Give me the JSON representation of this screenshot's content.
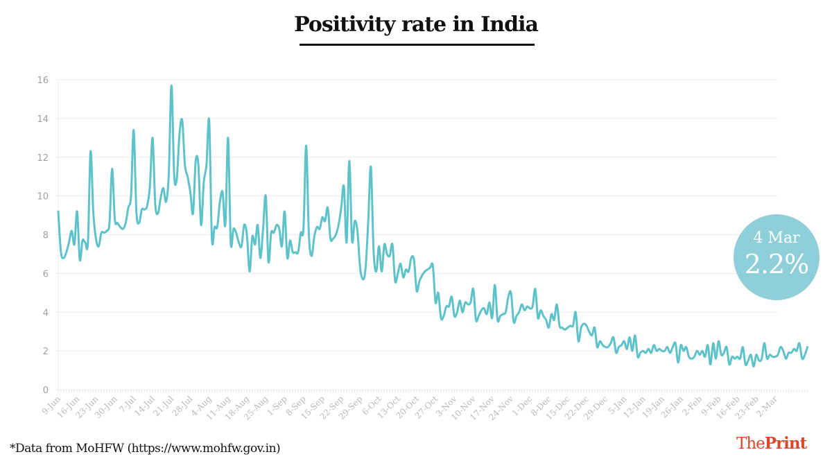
{
  "header": {
    "title": "Positivity rate in India"
  },
  "badge": {
    "date": "4 Mar",
    "value": "2.2%"
  },
  "footer": {
    "source_note": "*Data from MoHFW (https://www.mohfw.gov.in)"
  },
  "brand": {
    "logo_part1": "The",
    "logo_part2": "Print",
    "color": "#d54a2b"
  },
  "colors": {
    "line": "#5ec2cb",
    "badge": "#8fcfd9"
  },
  "chart_data": {
    "type": "line",
    "title": "Positivity rate in India",
    "xlabel": "",
    "ylabel": "",
    "ylim": [
      0,
      16
    ],
    "yticks": [
      0,
      2,
      4,
      6,
      8,
      10,
      12,
      14,
      16
    ],
    "grid": true,
    "legend": "none",
    "x_start": "9-Jun",
    "x_end": "4-Mar",
    "x_step_days": 1,
    "xtick_labels": [
      "9-Jun",
      "16-Jun",
      "23-Jun",
      "30-Jun",
      "7-Jul",
      "14-Jul",
      "21-Jul",
      "28-Jul",
      "4-Aug",
      "11-Aug",
      "18-Aug",
      "25-Aug",
      "1-Sep",
      "8-Sep",
      "15-Sep",
      "22-Sep",
      "29-Sep",
      "6-Oct",
      "13-Oct",
      "20-Oct",
      "27-Oct",
      "3-Nov",
      "10-Nov",
      "17-Nov",
      "24-Nov",
      "1-Dec",
      "8-Dec",
      "15-Dec",
      "22-Dec",
      "29-Dec",
      "5-Jan",
      "12-Jan",
      "19-Jan",
      "26-Jan",
      "2-Feb",
      "9-Feb",
      "16-Feb",
      "23-Feb",
      "2-Mar"
    ],
    "xtick_interval_days": 7,
    "series": [
      {
        "name": "Positivity rate (%)",
        "values": [
          9.2,
          7.1,
          6.8,
          7.1,
          7.6,
          8.2,
          7.5,
          9.2,
          6.7,
          7.7,
          7.6,
          7.6,
          12.3,
          9.2,
          7.8,
          7.4,
          8.1,
          8.1,
          8.2,
          8.6,
          11.4,
          8.8,
          8.6,
          8.4,
          8.3,
          8.6,
          9.4,
          10.0,
          13.4,
          9.2,
          8.6,
          9.3,
          9.3,
          9.5,
          10.5,
          13.0,
          9.6,
          9.1,
          9.9,
          10.4,
          9.7,
          11.1,
          15.7,
          11.1,
          10.9,
          13.2,
          13.9,
          11.6,
          11.0,
          10.2,
          9.1,
          11.8,
          11.6,
          8.5,
          10.7,
          11.6,
          13.9,
          7.8,
          8.4,
          8.4,
          9.7,
          10.2,
          8.5,
          13.0,
          7.6,
          8.3,
          8.1,
          7.6,
          7.4,
          8.5,
          8.0,
          6.1,
          7.9,
          7.5,
          8.5,
          6.8,
          8.3,
          10.0,
          6.6,
          8.1,
          8.1,
          8.5,
          8.3,
          7.4,
          9.2,
          6.8,
          7.7,
          7.1,
          7.1,
          7.1,
          8.1,
          8.3,
          12.6,
          8.0,
          6.9,
          7.9,
          8.4,
          8.3,
          8.9,
          8.7,
          9.4,
          7.8,
          7.8,
          8.0,
          8.5,
          9.4,
          10.5,
          7.6,
          11.8,
          7.7,
          8.7,
          8.2,
          6.3,
          5.7,
          6.2,
          8.6,
          11.5,
          7.2,
          6.1,
          7.4,
          6.1,
          7.5,
          7.0,
          6.9,
          7.5,
          5.6,
          6.0,
          6.5,
          5.8,
          6.2,
          6.1,
          6.8,
          6.7,
          5.1,
          5.6,
          5.9,
          6.1,
          6.2,
          6.3,
          6.4,
          4.5,
          5.0,
          3.7,
          3.8,
          4.3,
          4.3,
          4.8,
          3.8,
          4.0,
          4.6,
          4.0,
          4.5,
          4.4,
          4.5,
          5.2,
          3.6,
          3.8,
          4.1,
          4.2,
          3.9,
          4.5,
          3.7,
          5.4,
          3.6,
          3.8,
          3.9,
          4.0,
          4.8,
          5.0,
          3.5,
          3.8,
          4.0,
          4.4,
          4.1,
          4.3,
          4.2,
          4.3,
          5.2,
          3.7,
          4.1,
          3.8,
          3.6,
          3.2,
          3.9,
          3.6,
          4.4,
          3.3,
          3.2,
          3.1,
          3.2,
          3.3,
          3.3,
          4.0,
          2.5,
          3.2,
          3.4,
          3.3,
          3.0,
          2.8,
          3.2,
          2.2,
          2.5,
          2.3,
          2.2,
          2.2,
          2.4,
          2.7,
          1.9,
          2.2,
          2.3,
          2.5,
          2.1,
          2.7,
          2.0,
          2.8,
          1.7,
          1.9,
          2.0,
          1.9,
          2.1,
          1.9,
          2.3,
          2.0,
          2.1,
          2.0,
          2.0,
          2.2,
          1.9,
          2.2,
          2.4,
          1.4,
          2.3,
          2.0,
          2.2,
          1.7,
          1.6,
          1.7,
          2.0,
          1.8,
          2.0,
          1.7,
          2.3,
          1.3,
          2.4,
          1.6,
          2.5,
          1.8,
          1.9,
          2.2,
          1.3,
          1.7,
          1.6,
          1.7,
          1.6,
          2.2,
          1.3,
          1.5,
          1.8,
          1.2,
          1.8,
          1.5,
          1.6,
          2.4,
          1.6,
          1.8,
          1.7,
          1.7,
          1.8,
          2.2,
          2.0,
          1.6,
          1.9,
          1.9,
          2.1,
          2.0,
          2.4,
          1.6,
          1.8,
          2.2
        ]
      }
    ],
    "annotation": {
      "label": "4 Mar",
      "value": "2.2%"
    }
  }
}
